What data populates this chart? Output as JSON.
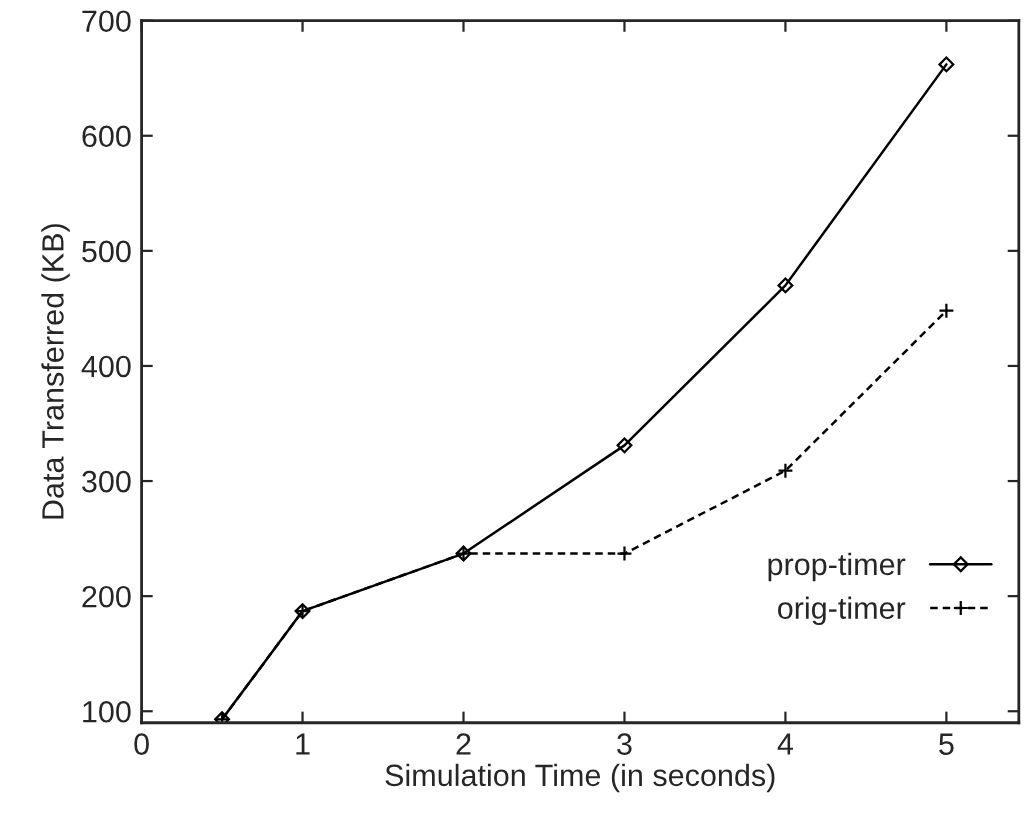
{
  "chart_data": {
    "type": "line",
    "xlabel": "Simulation Time (in seconds)",
    "ylabel": "Data Transferred (KB)",
    "x": [
      0.5,
      1,
      2,
      3,
      4,
      5
    ],
    "series": [
      {
        "name": "prop-timer",
        "color": "#000000",
        "values": [
          93,
          187,
          237,
          331,
          470,
          662
        ],
        "marker": "diamond",
        "line_style": "solid"
      },
      {
        "name": "orig-timer",
        "color": "#000000",
        "values": [
          93,
          187,
          237,
          237,
          309,
          448
        ],
        "marker": "cross",
        "line_style": "dashed"
      }
    ],
    "xlim": [
      0,
      5.45
    ],
    "xticks": [
      0,
      1,
      2,
      3,
      4,
      5
    ],
    "ylim": [
      90,
      700
    ],
    "yticks": [
      100,
      200,
      300,
      400,
      500,
      600,
      700
    ],
    "grid": false,
    "legend": "bottom right"
  }
}
